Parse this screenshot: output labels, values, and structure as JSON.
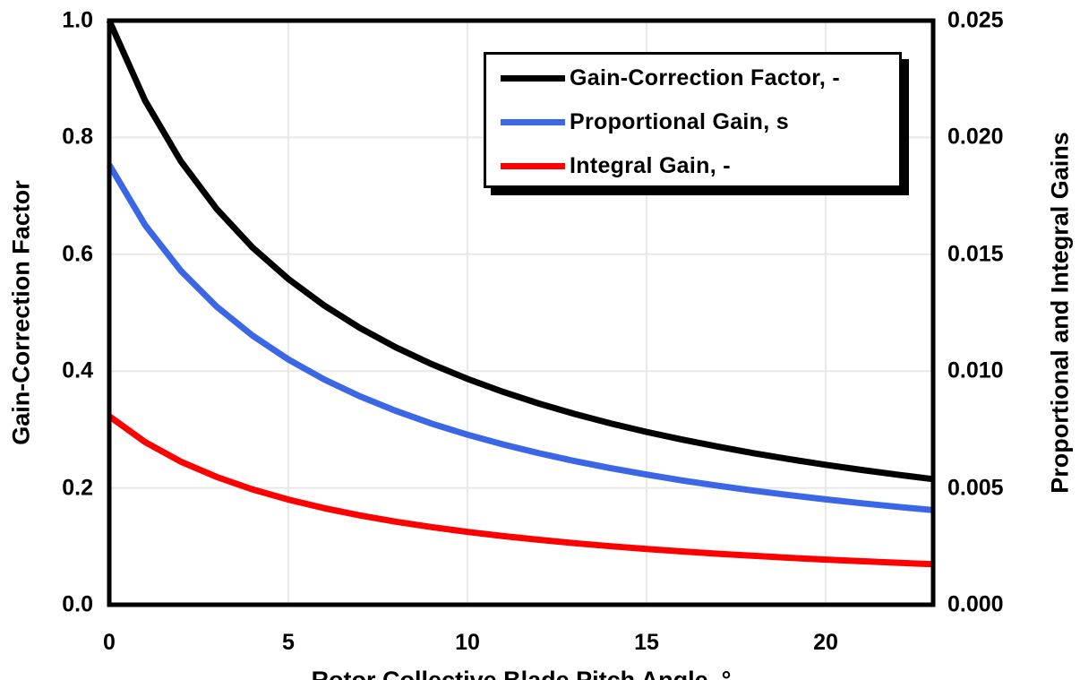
{
  "chart_data": {
    "type": "line",
    "xlabel": "Rotor Collective Blade Pitch Angle, °",
    "ylabel_left": "Gain-Correction Factor",
    "ylabel_right": "Proportional and Integral Gains",
    "xlim": [
      0,
      23
    ],
    "ylim_left": [
      0.0,
      1.0
    ],
    "ylim_right": [
      0.0,
      0.025
    ],
    "grid": true,
    "legend_position": "top-right-inside",
    "x_ticks": [
      0,
      5,
      10,
      15,
      20
    ],
    "x_tick_labels": [
      "0",
      "5",
      "10",
      "15",
      "20"
    ],
    "y_left_tick_labels": [
      "0.0",
      "0.2",
      "0.4",
      "0.6",
      "0.8",
      "1.0"
    ],
    "y_right_tick_labels": [
      "0.000",
      "0.005",
      "0.010",
      "0.015",
      "0.020",
      "0.025"
    ],
    "x": [
      0,
      1,
      2,
      3,
      4,
      5,
      6,
      7,
      8,
      9,
      10,
      11,
      12,
      13,
      14,
      15,
      16,
      17,
      18,
      19,
      20,
      21,
      22,
      23
    ],
    "series": [
      {
        "name": "Gain-Correction Factor, -",
        "axis": "left",
        "color": "#000000",
        "values": [
          1.0,
          0.8631,
          0.7591,
          0.6775,
          0.6117,
          0.5576,
          0.5123,
          0.4738,
          0.4407,
          0.4119,
          0.3866,
          0.3642,
          0.3444,
          0.3265,
          0.3104,
          0.2958,
          0.2826,
          0.2705,
          0.2593,
          0.2491,
          0.2396,
          0.2308,
          0.2227,
          0.2151
        ]
      },
      {
        "name": "Proportional Gain, s",
        "axis": "right",
        "color": "#3B66E5",
        "values": [
          0.018827,
          0.016249,
          0.014291,
          0.012755,
          0.011517,
          0.010498,
          0.009645,
          0.00892,
          0.008296,
          0.007754,
          0.007278,
          0.006858,
          0.006483,
          0.006147,
          0.005844,
          0.00557,
          0.00532,
          0.005092,
          0.004882,
          0.004689,
          0.004511,
          0.004346,
          0.004192,
          0.004049
        ]
      },
      {
        "name": "Integral Gain, -",
        "axis": "right",
        "color": "#FF0000",
        "values": [
          0.008069,
          0.006964,
          0.006125,
          0.005467,
          0.004936,
          0.0045,
          0.004133,
          0.003823,
          0.003556,
          0.003323,
          0.003119,
          0.002939,
          0.002779,
          0.002634,
          0.002505,
          0.002387,
          0.00228,
          0.002182,
          0.002092,
          0.00201,
          0.001933,
          0.001862,
          0.001797,
          0.001735
        ]
      }
    ],
    "colors": {
      "grid": "#E8E8E8",
      "frame": "#000000",
      "background": "#FFFFFF"
    }
  }
}
